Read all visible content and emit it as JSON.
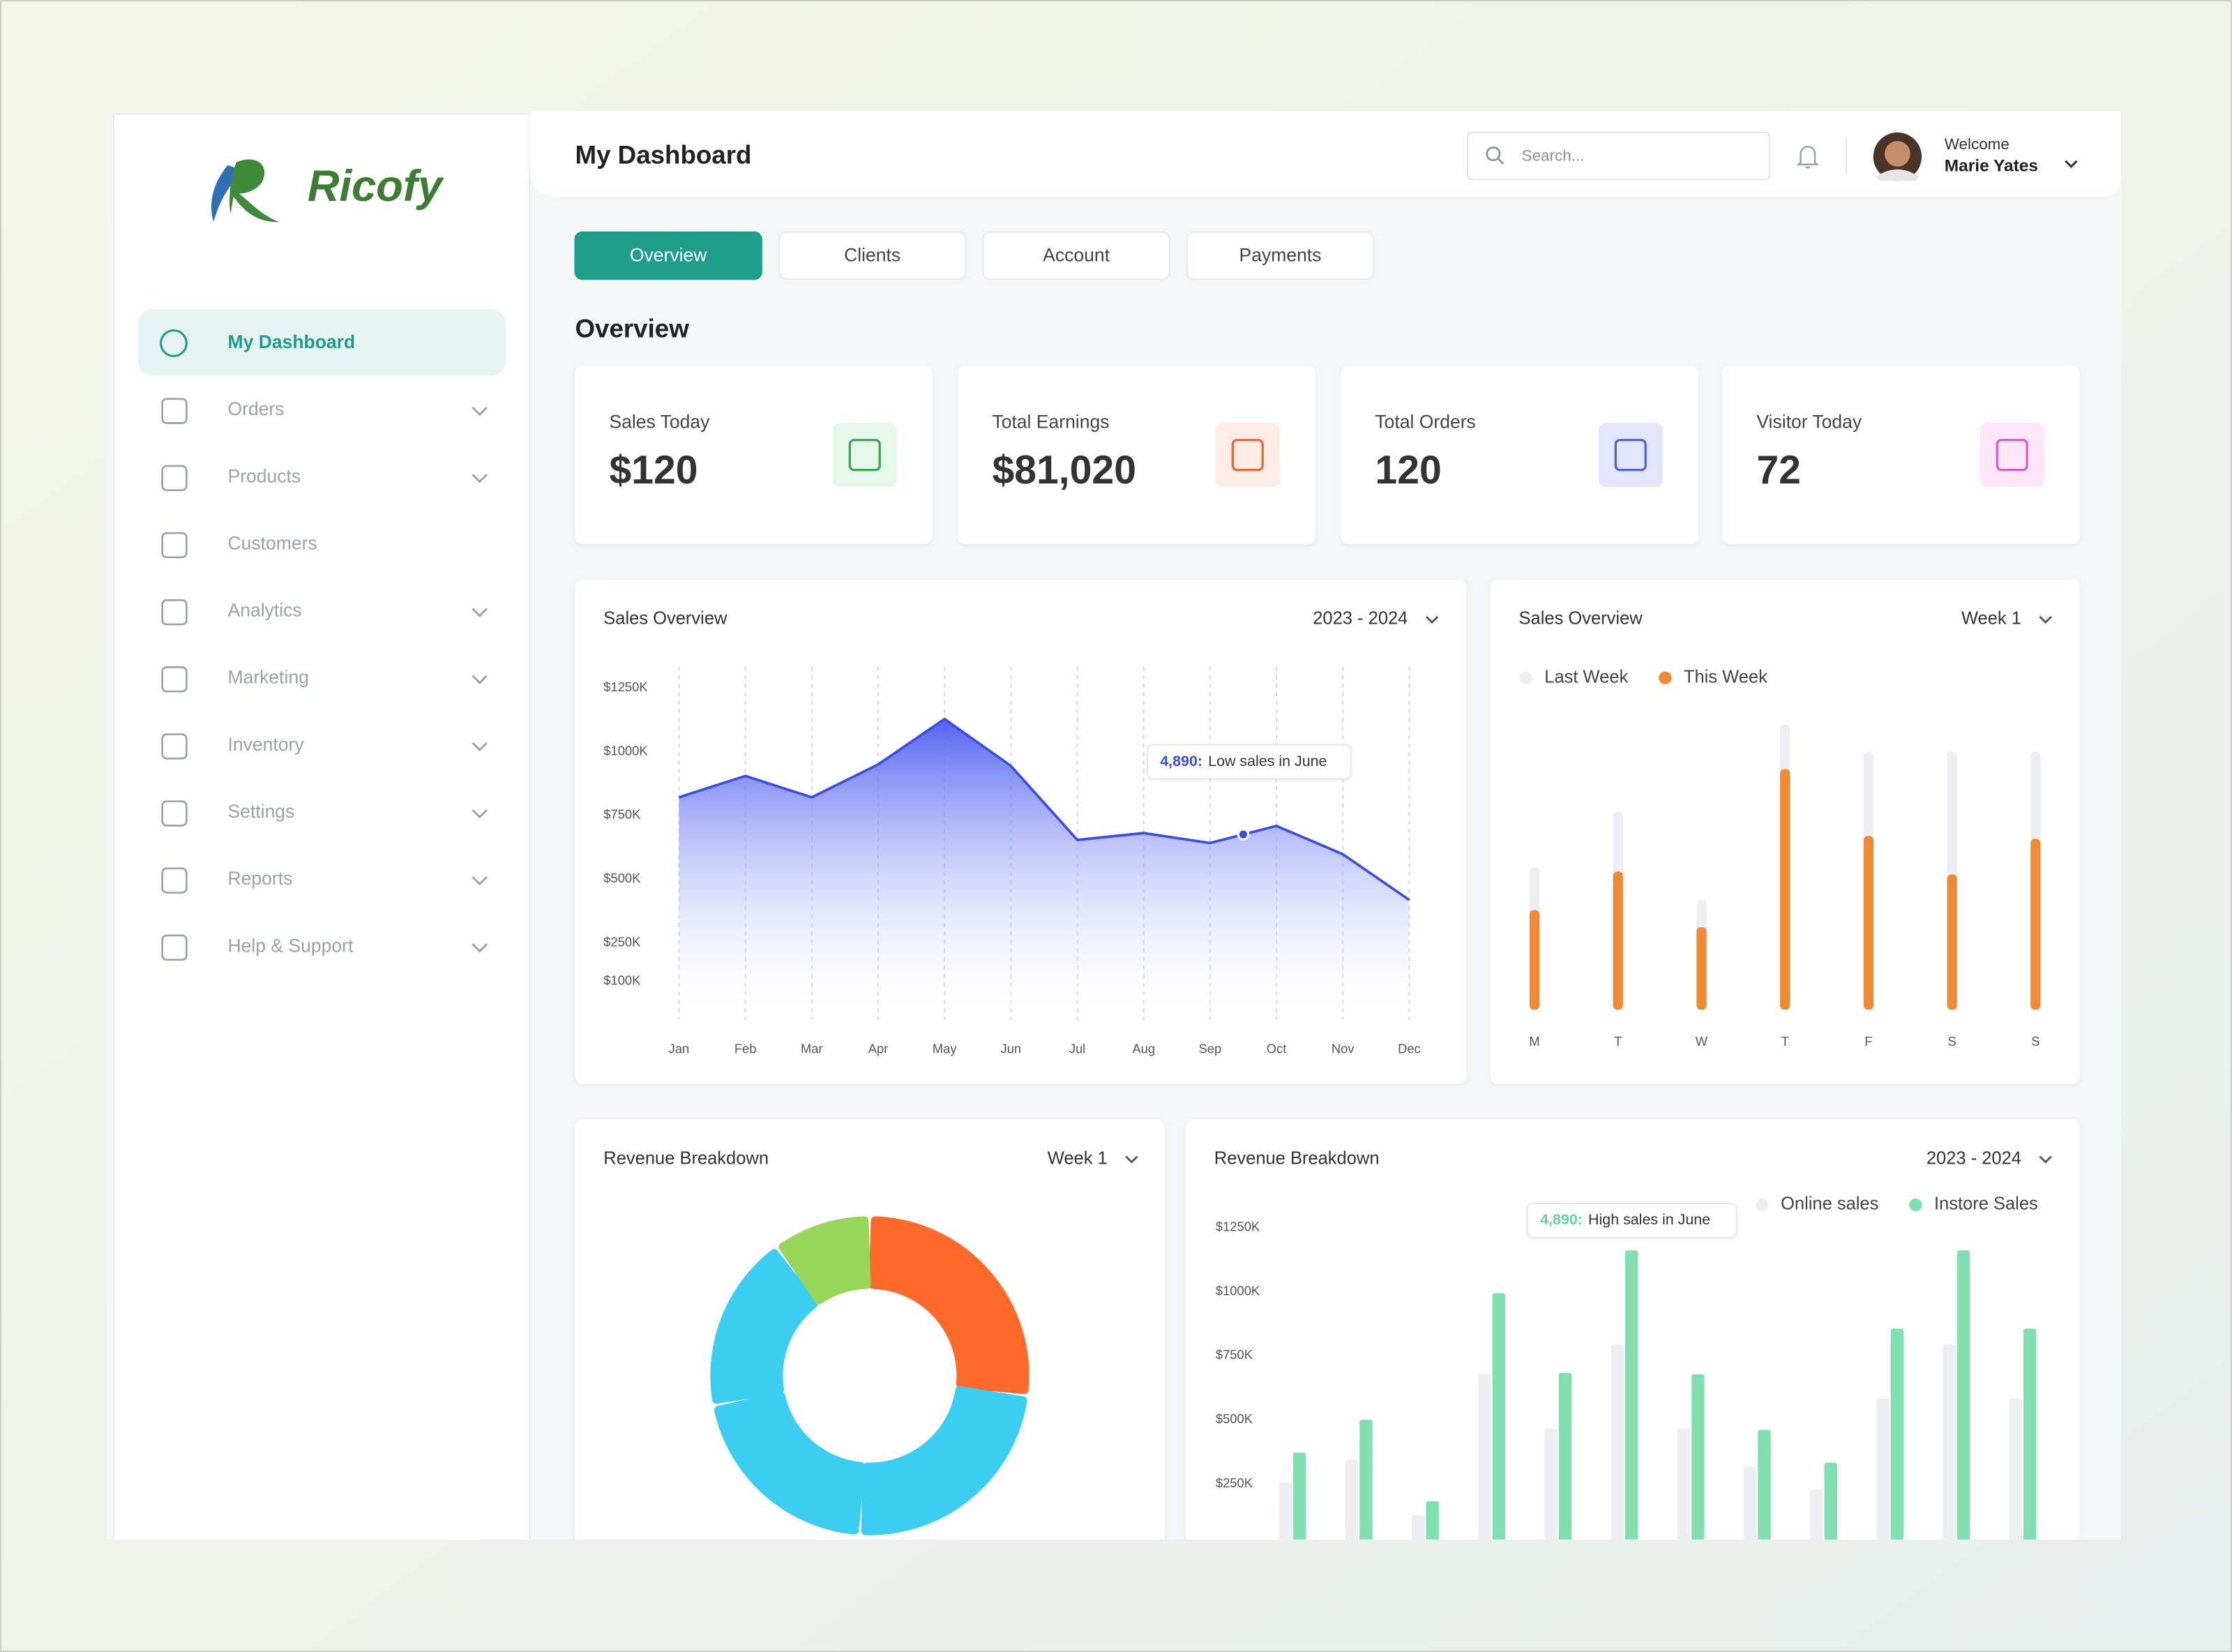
{
  "brand": "Ricofy",
  "sidebar": [
    {
      "label": "My Dashboard",
      "active": true,
      "submenu": false
    },
    {
      "label": "Orders",
      "active": false,
      "submenu": true
    },
    {
      "label": "Products",
      "active": false,
      "submenu": true
    },
    {
      "label": "Customers",
      "active": false,
      "submenu": false
    },
    {
      "label": "Analytics",
      "active": false,
      "submenu": true
    },
    {
      "label": "Marketing",
      "active": false,
      "submenu": true
    },
    {
      "label": "Inventory",
      "active": false,
      "submenu": true
    },
    {
      "label": "Settings",
      "active": false,
      "submenu": true
    },
    {
      "label": "Reports",
      "active": false,
      "submenu": true
    },
    {
      "label": "Help & Support",
      "active": false,
      "submenu": true
    }
  ],
  "header": {
    "title": "My Dashboard",
    "search_placeholder": "Search...",
    "greeting": "Welcome",
    "user_name": "Marie Yates"
  },
  "tabs": [
    {
      "label": "Overview",
      "active": true
    },
    {
      "label": "Clients",
      "active": false
    },
    {
      "label": "Account",
      "active": false
    },
    {
      "label": "Payments",
      "active": false
    }
  ],
  "section_title": "Overview",
  "stats": [
    {
      "label": "Sales Today",
      "value": "$120",
      "icon_color": "#e4f7e8"
    },
    {
      "label": "Total Earnings",
      "value": "$81,020",
      "icon_color": "#fdece5"
    },
    {
      "label": "Total Orders",
      "value": "120",
      "icon_color": "#e3e6fb"
    },
    {
      "label": "Visitor Today",
      "value": "72",
      "icon_color": "#fce6f8"
    }
  ],
  "chart_data": [
    {
      "type": "area",
      "title": "Sales Overview",
      "period": "2023 - 2024",
      "categories": [
        "Jan",
        "Feb",
        "Mar",
        "Apr",
        "May",
        "Jun",
        "Jul",
        "Aug",
        "Sep",
        "Oct",
        "Nov",
        "Dec"
      ],
      "values": [
        821,
        905,
        821,
        950,
        1128,
        944,
        654,
        681,
        642,
        709,
        598,
        419
      ],
      "color": "#3b4ce6",
      "ylim": [
        0,
        1250
      ],
      "yticks": [
        {
          "value": 1250,
          "label": "$1250K"
        },
        {
          "value": 1000,
          "label": "$1000K"
        },
        {
          "value": 750,
          "label": "$750K"
        },
        {
          "value": 500,
          "label": "$500K"
        },
        {
          "value": 250,
          "label": "$250K"
        },
        {
          "value": 100,
          "label": "$100K"
        }
      ],
      "grid": true,
      "annotation": {
        "value": "4,890:",
        "text": "Low sales in June"
      }
    },
    {
      "type": "bar",
      "title": "Sales Overview",
      "period": "Week 1",
      "categories": [
        "M",
        "T",
        "W",
        "T",
        "F",
        "S",
        "S"
      ],
      "series": [
        {
          "name": "Last Week",
          "color": "#eceef2",
          "values": [
            50,
            69.5,
            38.5,
            100,
            90.5,
            90.5,
            90.5
          ]
        },
        {
          "name": "This Week",
          "color": "#f08a35",
          "values": [
            35,
            48.5,
            29,
            84.5,
            61,
            47.5,
            60
          ]
        }
      ],
      "ylim": [
        0,
        100
      ],
      "legend": "top-left"
    },
    {
      "type": "donut",
      "title": "Revenue Breakdown",
      "period": "Week 1",
      "values": [
        27,
        24,
        21,
        18,
        10
      ],
      "colors": [
        "#ff6a2a",
        "#3ccdf2",
        "#3ccdf2",
        "#3ccdf2",
        "#98d65a"
      ]
    },
    {
      "type": "grouped-bar",
      "title": "Revenue Breakdown",
      "period": "2023 - 2024",
      "categories": [
        null,
        null,
        null,
        null,
        null,
        null,
        null,
        null,
        null,
        null,
        null,
        null
      ],
      "series": [
        {
          "name": "Online sales",
          "color": "#eceef2",
          "values": [
            256,
            344,
            128,
            678,
            467,
            794,
            467,
            317,
            228,
            583,
            794,
            583
          ]
        },
        {
          "name": "Instore Sales",
          "color": "#7fdfae",
          "values": [
            372,
            500,
            183,
            994,
            683,
            1161,
            678,
            461,
            333,
            856,
            1161,
            856
          ]
        }
      ],
      "ylim": [
        0,
        1250
      ],
      "yticks": [
        {
          "value": 1250,
          "label": "$1250K"
        },
        {
          "value": 1000,
          "label": "$1000K"
        },
        {
          "value": 750,
          "label": "$750K"
        },
        {
          "value": 500,
          "label": "$500K"
        },
        {
          "value": 250,
          "label": "$250K"
        }
      ],
      "legend": "top-right",
      "annotation": {
        "value": "4,890:",
        "text": "High sales in June"
      }
    }
  ]
}
